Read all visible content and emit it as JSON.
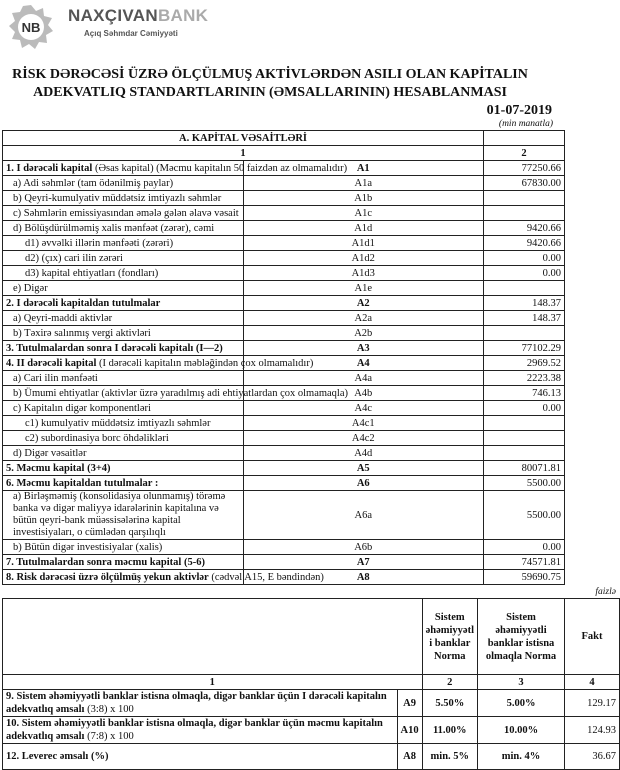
{
  "header": {
    "brand_main": "NAXÇIVAN",
    "brand_accent": "BANK",
    "subtitle": "Açıq Səhmdar Cəmiyyəti",
    "logo_text": "NB"
  },
  "title_line1": "RİSK DƏRƏCƏSİ ÜZRƏ ÖLÇÜLMUŞ AKTİVLƏRDƏN ASILI OLAN KAPİTALIN",
  "title_line2": "ADEKVATLIQ STANDARTLARININ (ƏMSALLARININ) HESABLANMASI",
  "date": "01-07-2019",
  "unit": "(min manatla)",
  "table1": {
    "section": "A. KAPİTAL VƏSAİTLƏRİ",
    "col1": "1",
    "col2": "2",
    "rows": [
      {
        "label": "1. I dərəcəli kapital",
        "note": " (Əsas kapital) (Məcmu kapitalın 50 faizdən  az olmamalıdır)",
        "code": "A1",
        "value": "77250.66",
        "bold": true
      },
      {
        "label": "a) Adi səhmlər (tam ödənilmiş paylar)",
        "code": "A1a",
        "value": "67830.00",
        "ind": 1
      },
      {
        "label": "b) Qeyri-kumulyativ müddətsiz imtiyazlı səhmlər",
        "code": "A1b",
        "value": "",
        "ind": 1
      },
      {
        "label": "c) Səhmlərin emissiyasından əmələ gələn  əlavə vəsait",
        "code": "A1c",
        "value": "",
        "ind": 1
      },
      {
        "label": "d)   Bölüşdürülməmiş xalis mənfəət (zərər), cəmi",
        "code": "A1d",
        "value": "9420.66",
        "ind": 1
      },
      {
        "label": "d1) əvvəlki illərin mənfəəti (zərəri)",
        "code": "A1d1",
        "value": "9420.66",
        "ind": 2
      },
      {
        "label": "d2) (çıx) cari ilin zərəri",
        "code": "A1d2",
        "value": "0.00",
        "ind": 2
      },
      {
        "label": "d3) kapital ehtiyatları (fondları)",
        "code": "A1d3",
        "value": "0.00",
        "ind": 2
      },
      {
        "label": "e) Digər",
        "code": "A1e",
        "value": "",
        "ind": 1
      },
      {
        "label": "2. I dərəcəli kapitaldan  tutulmalar",
        "code": "A2",
        "value": "148.37",
        "bold": true
      },
      {
        "label": "a) Qeyri-maddi aktivlər",
        "code": "A2a",
        "value": "148.37",
        "ind": 1
      },
      {
        "label": "b) Təxirə salınmış vergi aktivləri",
        "code": "A2b",
        "value": "",
        "ind": 1
      },
      {
        "label": "3. Tutulmalardan  sonra I dərəcəli kapitalı (I—2)",
        "code": "A3",
        "value": "77102.29",
        "bold": true
      },
      {
        "label": "4. II dərəcəli  kapital",
        "note": " (I dərəcəli  kapitalın  məbləğindən çox olmamalıdır)",
        "code": "A4",
        "value": "2969.52",
        "bold": true
      },
      {
        "label": "a) Cari ilin mənfəəti",
        "code": "A4a",
        "value": "2223.38",
        "ind": 1
      },
      {
        "label": "b) Ümumi ehtiyatlar (aktivlər üzrə yaradılmış adi ehtiyatlardan çox olmamaqla)",
        "code": "A4b",
        "value": "746.13",
        "ind": 1
      },
      {
        "label": "c)  Kapitalın digər komponentləri",
        "code": "A4c",
        "value": "0.00",
        "ind": 1
      },
      {
        "label": "c1) kumulyativ müddətsiz imtiyazlı səhmlər",
        "code": "A4c1",
        "value": "",
        "ind": 2
      },
      {
        "label": "c2) subordinasiya borc öhdəlikləri",
        "code": "A4c2",
        "value": "",
        "ind": 2
      },
      {
        "label": "d) Digər vəsaitlər",
        "code": "A4d",
        "value": "",
        "ind": 1
      },
      {
        "label": "5. Məcmu kapital (3+4)",
        "code": "A5",
        "value": "80071.81",
        "bold": true
      },
      {
        "label": "6. Məcmu kapitaldan tutulmalar :",
        "code": "A6",
        "value": "5500.00",
        "bold": true
      },
      {
        "label": "a)   Birləşməmiş (konsolidasiya olunmamış) törəmə banka və digər maliyyə idarələrinin kapitalına və bütün qeyri-bank müəssisələrinə kapital investisiyaları, o cümlədən qarşılıqlı",
        "code": "A6a",
        "value": "5500.00",
        "clip": true
      },
      {
        "label": "b)    Bütün digər investisiyalar (xalis)",
        "code": "A6b",
        "value": "0.00",
        "ind": 1
      },
      {
        "label": "7. Tutulmalardan  sonra məcmu kapital (5-6)",
        "code": "A7",
        "value": "74571.81",
        "bold": true
      },
      {
        "label": "8. Risk dərəcəsi üzrə ölçülmüş  yekun aktivlər",
        "note": "  (cədvəl A15, E bəndindən)",
        "code": "A8",
        "value": "59690.75",
        "bold": true
      }
    ]
  },
  "unit2": "faizlə",
  "table2": {
    "headers": [
      "",
      "Sistem əhəmiyyətl i banklar Norma",
      "Sistem əhəmiyyətli banklar istisna olmaqla Norma",
      "Fakt"
    ],
    "numbers": [
      "1",
      "2",
      "3",
      "4"
    ],
    "rows": [
      {
        "label": "9. Sistem əhəmiyyətli banklar istisna olmaqla, digər banklar üçün I dərəcəli  kapitalın adekvatlıq əmsalı",
        "note": " (3:8) x 100",
        "code": "A9",
        "norm1": "5.50%",
        "norm2": "5.00%",
        "fakt": "129.17"
      },
      {
        "label": "10. Sistem əhəmiyyətli banklar istisna olmaqla, digər banklar üçün məcmu kapitalın adekvatlıq  əmsalı",
        "note": " (7:8) x 100",
        "code": "A10",
        "norm1": "11.00%",
        "norm2": "10.00%",
        "fakt": "124.93"
      },
      {
        "label": "12. Leverec əmsalı (%)",
        "note": "",
        "code": "A8",
        "norm1": "min. 5%",
        "norm2": "min. 4%",
        "fakt": "36.67"
      }
    ]
  }
}
